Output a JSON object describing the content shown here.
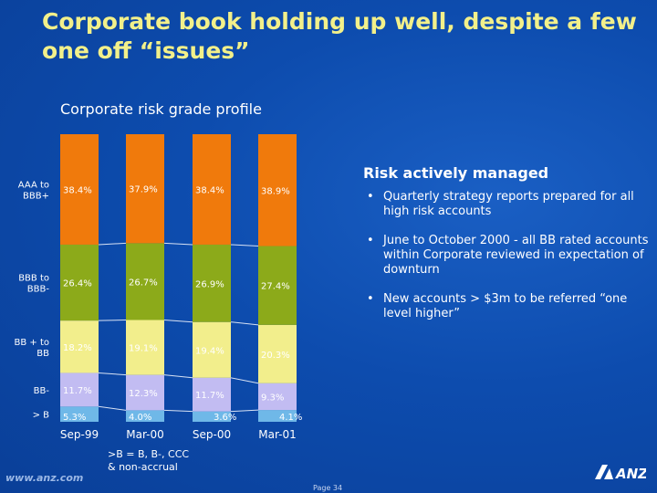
{
  "title": "Corporate book holding up well, despite a few one off “issues”",
  "subtitle": "Corporate risk grade profile",
  "chart_data": {
    "type": "bar",
    "stacked": true,
    "categories": [
      "Sep-99",
      "Mar-00",
      "Sep-00",
      "Mar-01"
    ],
    "series": [
      {
        "name": "> B",
        "color": "#6fb8e8",
        "values": [
          5.3,
          4.0,
          3.6,
          4.1
        ],
        "labels": [
          "5.3%",
          "4.0%",
          "3.6%",
          "4.1%"
        ]
      },
      {
        "name": "BB-",
        "color": "#c2bcf2",
        "values": [
          11.7,
          12.3,
          11.7,
          9.3
        ],
        "labels": [
          "11.7%",
          "12.3%",
          "11.7%",
          "9.3%"
        ]
      },
      {
        "name": "BB + to BB",
        "color": "#f2ee8c",
        "values": [
          18.2,
          19.1,
          19.4,
          20.3
        ],
        "labels": [
          "18.2%",
          "19.1%",
          "19.4%",
          "20.3%"
        ]
      },
      {
        "name": "BBB to BBB-",
        "color": "#8caa1a",
        "values": [
          26.4,
          26.7,
          26.9,
          27.4
        ],
        "labels": [
          "26.4%",
          "26.7%",
          "26.9%",
          "27.4%"
        ]
      },
      {
        "name": "AAA to BBB+",
        "color": "#f07a0c",
        "values": [
          38.4,
          37.9,
          38.4,
          38.9
        ],
        "labels": [
          "38.4%",
          "37.9%",
          "38.4%",
          "38.9%"
        ]
      }
    ],
    "ylim": [
      0,
      100
    ],
    "grid": false,
    "legend": "left"
  },
  "footnote": ">B = B, B-, CCC\n& non-accrual",
  "panel": {
    "title": "Risk actively managed",
    "bullets": [
      "Quarterly strategy reports prepared for all high risk accounts",
      "June to October 2000 - all BB rated accounts within Corporate reviewed in expectation of downturn",
      "New accounts > $3m to be referred “one level higher”"
    ],
    "bullet_glyph": "•"
  },
  "url": "www.anz.com",
  "page": "Page 34",
  "logo": {
    "text": "ANZ",
    "icon": "anz-logo"
  }
}
